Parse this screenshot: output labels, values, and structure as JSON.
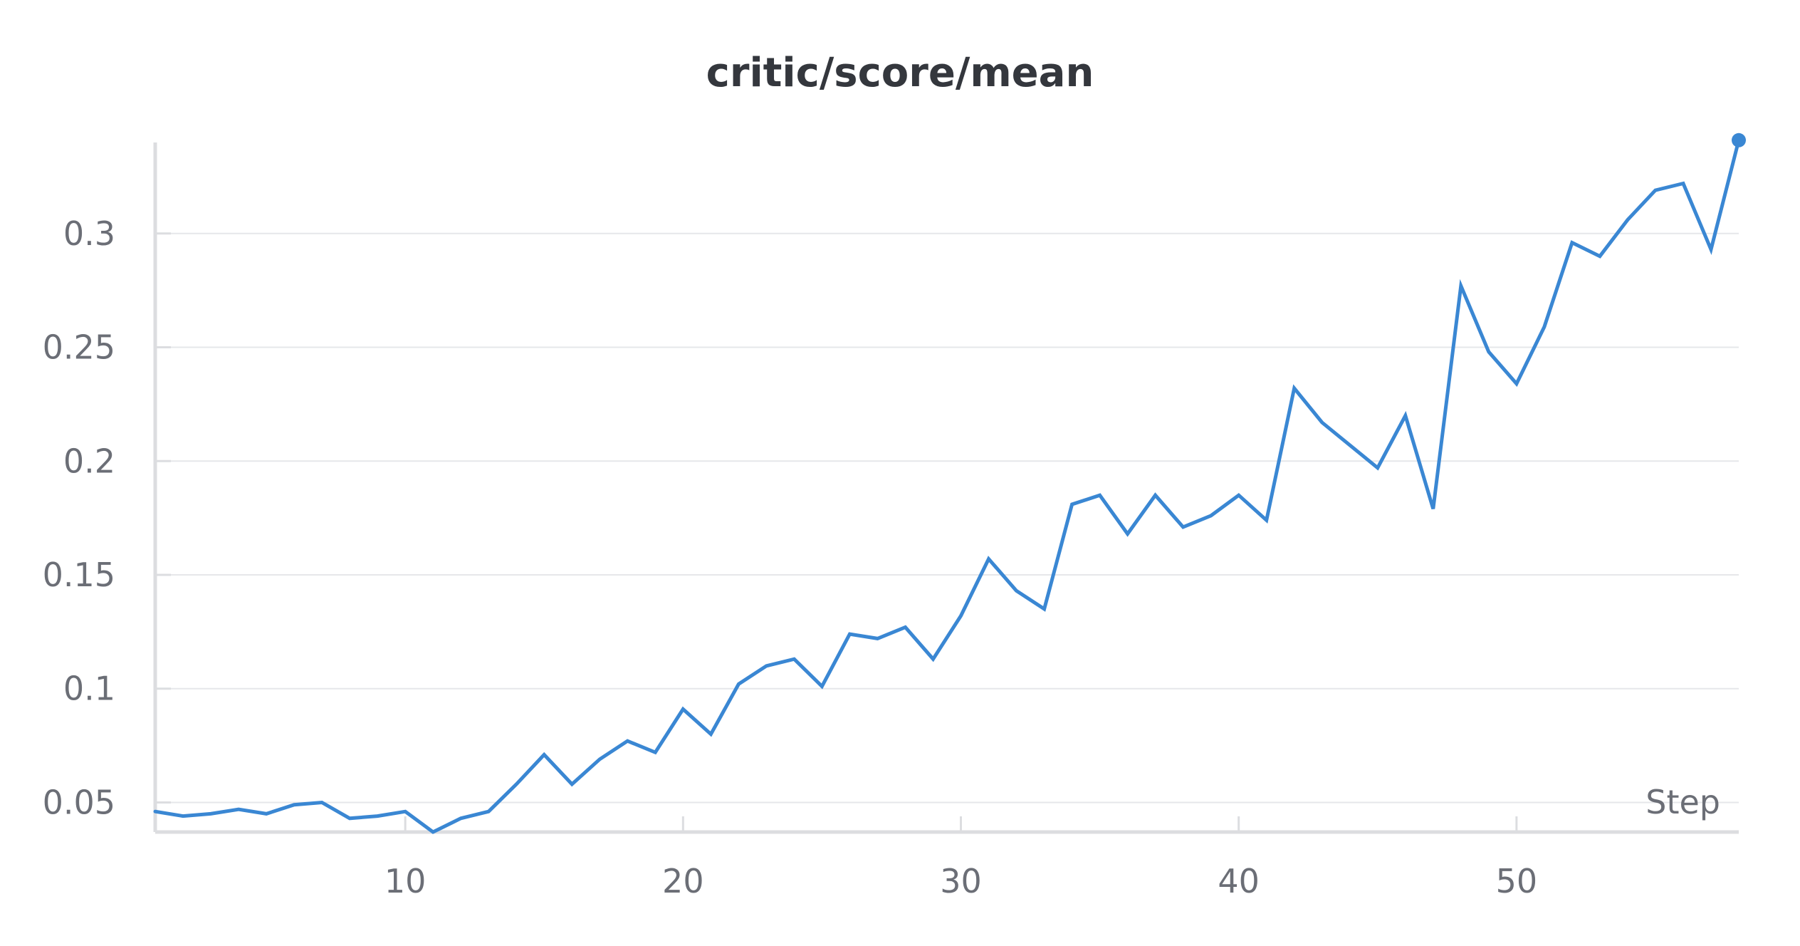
{
  "chart_data": {
    "type": "line",
    "title": "critic/score/mean",
    "xlabel": "Step",
    "ylabel": "",
    "xlim": [
      1,
      58
    ],
    "ylim": [
      0.037,
      0.34
    ],
    "xticks": [
      10,
      20,
      30,
      40,
      50
    ],
    "xtick_labels": [
      "10",
      "20",
      "30",
      "40",
      "50"
    ],
    "yticks": [
      0.05,
      0.1,
      0.15,
      0.2,
      0.25,
      0.3
    ],
    "ytick_labels": [
      "0.05",
      "0.1",
      "0.15",
      "0.2",
      "0.25",
      "0.3"
    ],
    "grid": true,
    "legend": "none",
    "color": "#3a87d3",
    "series": [
      {
        "x": [
          1,
          2,
          3,
          4,
          5,
          6,
          7,
          8,
          9,
          10,
          11,
          12,
          13,
          14,
          15,
          16,
          17,
          18,
          19,
          20,
          21,
          22,
          23,
          24,
          25,
          26,
          27,
          28,
          29,
          30,
          31,
          32,
          33,
          34,
          35,
          36,
          37,
          38,
          39,
          40,
          41,
          42,
          43,
          44,
          45,
          46,
          47,
          48,
          49,
          50,
          51,
          52,
          53,
          54,
          55,
          56,
          57,
          58
        ],
        "values": [
          0.046,
          0.044,
          0.045,
          0.047,
          0.045,
          0.049,
          0.05,
          0.043,
          0.044,
          0.046,
          0.037,
          0.043,
          0.046,
          0.058,
          0.071,
          0.058,
          0.069,
          0.077,
          0.072,
          0.091,
          0.08,
          0.102,
          0.11,
          0.113,
          0.101,
          0.124,
          0.122,
          0.127,
          0.113,
          0.132,
          0.157,
          0.143,
          0.135,
          0.181,
          0.185,
          0.168,
          0.185,
          0.171,
          0.176,
          0.185,
          0.174,
          0.232,
          0.217,
          0.207,
          0.197,
          0.22,
          0.179,
          0.277,
          0.248,
          0.234,
          0.259,
          0.296,
          0.29,
          0.306,
          0.319,
          0.322,
          0.293,
          0.341
        ]
      }
    ]
  }
}
